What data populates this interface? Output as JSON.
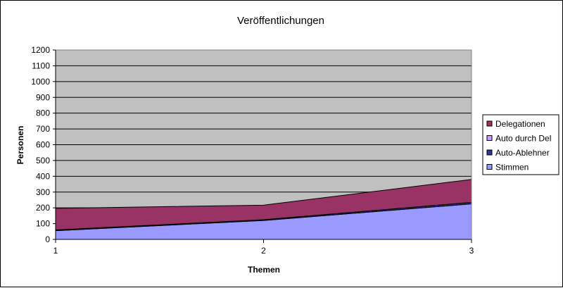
{
  "chart_data": {
    "type": "area",
    "stacked": true,
    "title": "Veröffentlichungen",
    "xlabel": "Themen",
    "ylabel": "Personen",
    "categories": [
      "1",
      "2",
      "3"
    ],
    "ylim": [
      0,
      1200
    ],
    "yticks": [
      0,
      100,
      200,
      300,
      400,
      500,
      600,
      700,
      800,
      900,
      1000,
      1100,
      1200
    ],
    "grid": true,
    "legend_position": "right",
    "plot_background": "#C0C0C0",
    "series": [
      {
        "name": "Stimmen",
        "values": [
          55,
          120,
          225
        ],
        "color": "#9999FF"
      },
      {
        "name": "Auto-Ablehner",
        "values": [
          5,
          5,
          10
        ],
        "color": "#333399"
      },
      {
        "name": "Auto durch Del",
        "values": [
          0,
          0,
          0
        ],
        "color": "#CC99FF"
      },
      {
        "name": "Delegationen",
        "values": [
          137,
          92,
          145
        ],
        "color": "#993366"
      }
    ]
  }
}
